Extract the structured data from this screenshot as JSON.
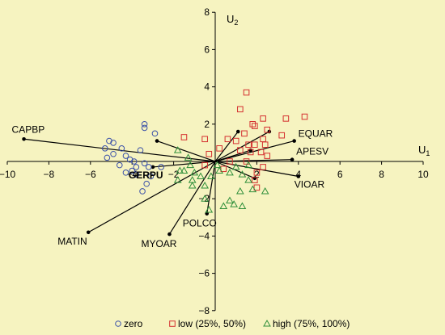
{
  "chart_data": {
    "type": "scatter",
    "title": "",
    "xlabel": "U",
    "xlabel_sub": "1",
    "ylabel": "U",
    "ylabel_sub": "2",
    "xlim": [
      -10,
      10
    ],
    "ylim": [
      -8,
      8
    ],
    "x_ticks": [
      -10,
      -8,
      -6,
      -4,
      -2,
      2,
      4,
      6,
      8,
      10
    ],
    "y_ticks": [
      -8,
      -6,
      -4,
      -2,
      2,
      4,
      6,
      8
    ],
    "x_tick_labels": [
      "−10",
      "−8",
      "−6",
      "−4",
      "−2",
      "2",
      "4",
      "6",
      "8",
      "10"
    ],
    "y_tick_labels": [
      "−8",
      "−6",
      "−4",
      "−2",
      "2",
      "4",
      "6",
      "8"
    ],
    "grid": false,
    "legend_position": "bottom",
    "colors": {
      "background": "#f6f3c0",
      "zero": "#3a50a8",
      "low": "#d42f2f",
      "high": "#2f8f3a",
      "vectors": "#000000"
    },
    "series": [
      {
        "name": "zero",
        "marker": "circle",
        "points": [
          [
            -3.4,
            2.0
          ],
          [
            -3.4,
            1.8
          ],
          [
            -2.9,
            1.5
          ],
          [
            -5.1,
            1.1
          ],
          [
            -4.9,
            1.0
          ],
          [
            -5.3,
            0.7
          ],
          [
            -4.5,
            0.7
          ],
          [
            -3.6,
            0.6
          ],
          [
            -4.9,
            0.4
          ],
          [
            -4.3,
            0.3
          ],
          [
            -4.1,
            0.1
          ],
          [
            -5.2,
            0.2
          ],
          [
            -3.4,
            -0.1
          ],
          [
            -4.6,
            -0.2
          ],
          [
            -3.8,
            -0.3
          ],
          [
            -3.2,
            -0.3
          ],
          [
            -4.0,
            -0.5
          ],
          [
            -2.6,
            -0.3
          ],
          [
            -3.8,
            -0.7
          ],
          [
            -3.1,
            -0.8
          ],
          [
            -3.3,
            -1.2
          ],
          [
            -3.5,
            -1.6
          ],
          [
            -3.9,
            0.0
          ],
          [
            -4.3,
            -0.6
          ]
        ]
      },
      {
        "name": "low (25%, 50%)",
        "marker": "square",
        "points": [
          [
            1.5,
            3.7
          ],
          [
            1.2,
            2.8
          ],
          [
            1.8,
            2.0
          ],
          [
            2.3,
            2.3
          ],
          [
            3.4,
            2.3
          ],
          [
            4.3,
            2.4
          ],
          [
            1.9,
            1.9
          ],
          [
            2.5,
            1.7
          ],
          [
            3.2,
            1.4
          ],
          [
            1.4,
            1.5
          ],
          [
            1.0,
            1.1
          ],
          [
            1.9,
            0.9
          ],
          [
            2.4,
            0.9
          ],
          [
            -1.5,
            1.3
          ],
          [
            -0.5,
            1.2
          ],
          [
            0.6,
            1.2
          ],
          [
            1.2,
            0.6
          ],
          [
            0.2,
            0.7
          ],
          [
            1.7,
            0.5
          ],
          [
            2.2,
            0.5
          ],
          [
            2.5,
            0.3
          ],
          [
            -0.3,
            0.4
          ],
          [
            0.7,
            0.0
          ],
          [
            1.5,
            0.0
          ],
          [
            2.3,
            -0.3
          ],
          [
            2.0,
            -0.6
          ],
          [
            -0.5,
            -0.2
          ],
          [
            0.4,
            -0.4
          ],
          [
            1.9,
            -1.0
          ],
          [
            2.0,
            -1.4
          ],
          [
            1.6,
            0.9
          ],
          [
            2.3,
            1.2
          ]
        ]
      },
      {
        "name": "high (75%, 100%)",
        "marker": "triangle",
        "points": [
          [
            -1.8,
            0.6
          ],
          [
            -1.3,
            0.2
          ],
          [
            -1.2,
            -0.2
          ],
          [
            -1.5,
            -0.5
          ],
          [
            -1.0,
            -0.6
          ],
          [
            -0.7,
            -0.8
          ],
          [
            -0.2,
            -0.8
          ],
          [
            -1.8,
            -1.0
          ],
          [
            -1.1,
            -1.3
          ],
          [
            -0.5,
            -1.3
          ],
          [
            0.2,
            -0.5
          ],
          [
            0.7,
            -0.6
          ],
          [
            1.0,
            -0.3
          ],
          [
            1.3,
            -0.7
          ],
          [
            1.6,
            -1.0
          ],
          [
            1.8,
            -1.5
          ],
          [
            2.4,
            -1.6
          ],
          [
            1.2,
            -1.6
          ],
          [
            0.7,
            -2.1
          ],
          [
            0.4,
            -2.4
          ],
          [
            -0.3,
            -2.6
          ],
          [
            0.9,
            -2.3
          ],
          [
            1.3,
            -2.4
          ],
          [
            -0.5,
            -2.0
          ],
          [
            -1.7,
            -0.5
          ],
          [
            -1.1,
            -1.0
          ],
          [
            0.1,
            -0.2
          ],
          [
            1.6,
            -0.2
          ]
        ]
      }
    ],
    "vectors": [
      {
        "label": "CAPBP",
        "x": -9.2,
        "y": 1.2
      },
      {
        "label": "MATIN",
        "x": -6.1,
        "y": -3.8
      },
      {
        "label": "MYOAR",
        "x": -2.2,
        "y": -3.9
      },
      {
        "label": "POLCO",
        "x": -0.4,
        "y": -2.8
      },
      {
        "label": "GERPU",
        "x": -3.0,
        "y": -0.3
      },
      {
        "label": "EQUAR",
        "x": 3.8,
        "y": 1.1
      },
      {
        "label": "APESV",
        "x": 3.7,
        "y": 0.1
      },
      {
        "label": "VIOAR",
        "x": 4.0,
        "y": -0.8
      },
      {
        "label": "",
        "x": 2.6,
        "y": 1.6
      },
      {
        "label": "",
        "x": 1.1,
        "y": 1.6
      },
      {
        "label": "",
        "x": 1.7,
        "y": 0.6
      },
      {
        "label": "",
        "x": 1.9,
        "y": -0.9
      },
      {
        "label": "",
        "x": -2.8,
        "y": 1.1
      }
    ]
  },
  "legend": [
    {
      "label": "zero",
      "marker": "circle"
    },
    {
      "label": "low (25%, 50%)",
      "marker": "square"
    },
    {
      "label": "high (75%, 100%)",
      "marker": "triangle"
    }
  ]
}
